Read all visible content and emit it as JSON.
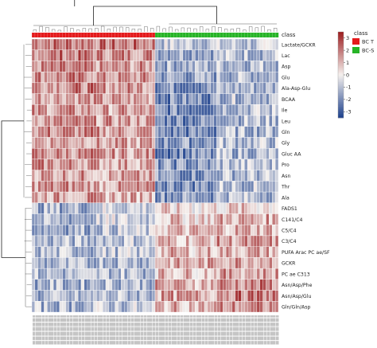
{
  "chart_data": {
    "type": "heatmap",
    "class_row_label": "class",
    "legend": {
      "title": "class",
      "entries": [
        {
          "label": "BC T",
          "color": "#e41a1c"
        },
        {
          "label": "BC-S",
          "color": "#27b427"
        }
      ]
    },
    "colorbar": {
      "ticks": [
        3,
        2,
        1,
        0,
        -1,
        -2,
        -3
      ],
      "range": [
        -3.5,
        3.5
      ],
      "colors": {
        "high": "#9b1b1e",
        "mid": "#f5f1ee",
        "low": "#1b3f8c"
      }
    },
    "columns": {
      "total": 80,
      "class_T": 40,
      "class_S": 40
    },
    "rows": [
      {
        "label": "Lactate/GCKR",
        "pattern": [
          2.2,
          2.0,
          -0.8,
          -1.0
        ]
      },
      {
        "label": "Lac",
        "pattern": [
          2.0,
          1.8,
          -1.2,
          -1.0
        ]
      },
      {
        "label": "Asp",
        "pattern": [
          1.6,
          1.4,
          -1.3,
          -1.0
        ]
      },
      {
        "label": "Glu",
        "pattern": [
          1.8,
          1.5,
          -1.6,
          -1.2
        ]
      },
      {
        "label": "Ala-Asp-Glu",
        "pattern": [
          1.9,
          1.6,
          -1.9,
          -1.3
        ]
      },
      {
        "label": "BCAA",
        "pattern": [
          1.6,
          1.3,
          -2.0,
          -1.0
        ]
      },
      {
        "label": "Ile",
        "pattern": [
          1.5,
          1.3,
          -2.1,
          -1.0
        ]
      },
      {
        "label": "Leu",
        "pattern": [
          1.6,
          1.4,
          -2.0,
          -1.1
        ]
      },
      {
        "label": "Gln",
        "pattern": [
          1.7,
          1.5,
          -2.2,
          -1.2
        ]
      },
      {
        "label": "Gly",
        "pattern": [
          1.5,
          1.2,
          -1.8,
          -1.0
        ]
      },
      {
        "label": "Gluc AA",
        "pattern": [
          1.7,
          1.4,
          -2.1,
          -1.2
        ]
      },
      {
        "label": "Pro",
        "pattern": [
          1.6,
          1.3,
          -1.9,
          -1.0
        ]
      },
      {
        "label": "Asn",
        "pattern": [
          1.5,
          1.2,
          -1.8,
          -1.1
        ]
      },
      {
        "label": "Thr",
        "pattern": [
          1.6,
          1.3,
          -1.9,
          -1.0
        ]
      },
      {
        "label": "Ala",
        "pattern": [
          1.4,
          1.2,
          -1.7,
          -1.0
        ]
      },
      {
        "label": "FADS1",
        "pattern": [
          -1.3,
          -0.6,
          0.4,
          0.6
        ]
      },
      {
        "label": "C141/C4",
        "pattern": [
          -1.4,
          -0.7,
          0.8,
          1.2
        ]
      },
      {
        "label": "C5/C4",
        "pattern": [
          -1.3,
          -0.9,
          0.9,
          1.2
        ]
      },
      {
        "label": "C3/C4",
        "pattern": [
          -1.2,
          -0.8,
          1.0,
          1.4
        ]
      },
      {
        "label": "PUFA Arac PC ae/SF",
        "pattern": [
          -1.1,
          -0.9,
          1.0,
          1.2
        ]
      },
      {
        "label": "GCKR",
        "pattern": [
          -1.4,
          -1.0,
          1.2,
          1.6
        ]
      },
      {
        "label": "PC ae C313",
        "pattern": [
          -1.2,
          -1.0,
          1.0,
          1.4
        ]
      },
      {
        "label": "Asn/Asp/Phe",
        "pattern": [
          -1.3,
          -1.0,
          1.2,
          1.8
        ]
      },
      {
        "label": "Asn/Asp/Glu",
        "pattern": [
          -1.4,
          -1.1,
          1.3,
          2.0
        ]
      },
      {
        "label": "Gln/Gln/Asp",
        "pattern": [
          -1.2,
          -0.9,
          1.1,
          1.6
        ]
      }
    ]
  }
}
